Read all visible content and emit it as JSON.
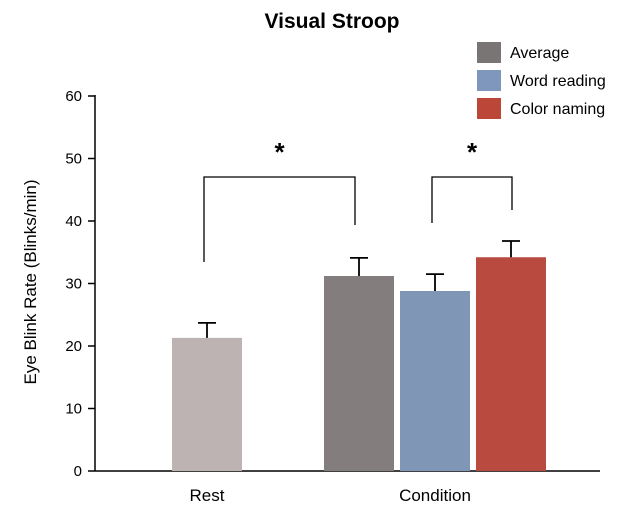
{
  "chart_data": {
    "type": "bar",
    "title": "Visual Stroop",
    "ylabel": "Eye Blink Rate (Blinks/min)",
    "xlabel": "",
    "ylim": [
      0,
      60
    ],
    "yticks": [
      0,
      10,
      20,
      30,
      40,
      50,
      60
    ],
    "categories": [
      "Rest",
      "Condition"
    ],
    "bars": [
      {
        "name": "Rest",
        "category": "Rest",
        "value": 21.3,
        "error": 2.4,
        "color": "#bdb3b3"
      },
      {
        "name": "Average",
        "category": "Condition",
        "value": 31.2,
        "error": 2.9,
        "color": "#837d7d"
      },
      {
        "name": "Word reading",
        "category": "Condition",
        "value": 28.8,
        "error": 2.7,
        "color": "#8096b6"
      },
      {
        "name": "Color naming",
        "category": "Condition",
        "value": 34.2,
        "error": 2.6,
        "color": "#b84a3f"
      }
    ],
    "legend": {
      "placement": "top-right",
      "items": [
        {
          "label": "Average",
          "color": "#7a7575"
        },
        {
          "label": "Word reading",
          "color": "#7f97bd"
        },
        {
          "label": "Color naming",
          "color": "#bc4637"
        }
      ]
    },
    "significance": [
      {
        "label": "*",
        "from": "Rest",
        "to": "Average"
      },
      {
        "label": "*",
        "from": "Word reading",
        "to": "Color naming"
      }
    ],
    "grid": false
  }
}
